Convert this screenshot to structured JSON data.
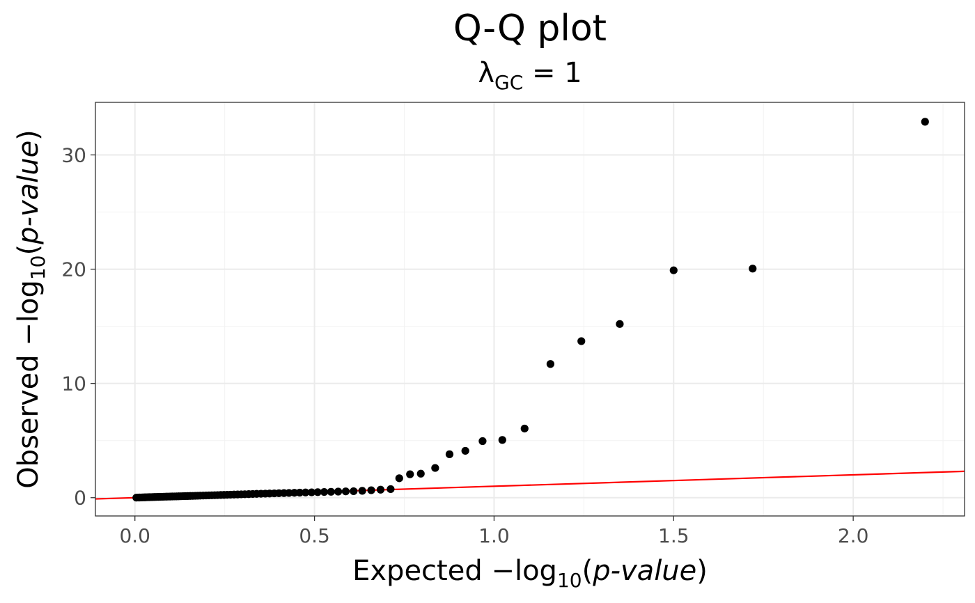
{
  "chart_data": {
    "type": "scatter",
    "title": "Q-Q plot",
    "subtitle": {
      "symbol": "λ",
      "subscript": "GC",
      "rest": " = 1"
    },
    "xlabel": {
      "prefix": "Expected  −log",
      "sub": "10",
      "open": "(",
      "italic": "p-value",
      "close": ")"
    },
    "ylabel": {
      "prefix": "Observed  −log",
      "sub": "10",
      "open": "(",
      "italic": "p-value",
      "close": ")"
    },
    "xlim": [
      -0.11,
      2.31
    ],
    "ylim": [
      -1.6,
      34.6
    ],
    "x_ticks": [
      0.0,
      0.5,
      1.0,
      1.5,
      2.0
    ],
    "x_tick_labels": [
      "0.0",
      "0.5",
      "1.0",
      "1.5",
      "2.0"
    ],
    "y_ticks": [
      0,
      10,
      20,
      30
    ],
    "y_tick_labels": [
      "0",
      "10",
      "20",
      "30"
    ],
    "grid": true,
    "reference_line": {
      "slope": 1,
      "intercept": 0,
      "color": "#ff0000"
    },
    "point_color": "#000000",
    "points": [
      [
        0.004,
        0.003
      ],
      [
        0.009,
        0.01
      ],
      [
        0.013,
        0.015
      ],
      [
        0.018,
        0.02
      ],
      [
        0.022,
        0.025
      ],
      [
        0.027,
        0.03
      ],
      [
        0.031,
        0.035
      ],
      [
        0.036,
        0.04
      ],
      [
        0.04,
        0.045
      ],
      [
        0.045,
        0.05
      ],
      [
        0.05,
        0.055
      ],
      [
        0.055,
        0.06
      ],
      [
        0.06,
        0.065
      ],
      [
        0.065,
        0.07
      ],
      [
        0.07,
        0.075
      ],
      [
        0.076,
        0.08
      ],
      [
        0.081,
        0.085
      ],
      [
        0.087,
        0.09
      ],
      [
        0.092,
        0.095
      ],
      [
        0.098,
        0.1
      ],
      [
        0.104,
        0.105
      ],
      [
        0.11,
        0.11
      ],
      [
        0.116,
        0.115
      ],
      [
        0.122,
        0.12
      ],
      [
        0.128,
        0.126
      ],
      [
        0.134,
        0.132
      ],
      [
        0.14,
        0.138
      ],
      [
        0.147,
        0.144
      ],
      [
        0.154,
        0.15
      ],
      [
        0.161,
        0.157
      ],
      [
        0.168,
        0.164
      ],
      [
        0.175,
        0.171
      ],
      [
        0.182,
        0.178
      ],
      [
        0.19,
        0.186
      ],
      [
        0.198,
        0.194
      ],
      [
        0.206,
        0.202
      ],
      [
        0.214,
        0.21
      ],
      [
        0.222,
        0.218
      ],
      [
        0.23,
        0.226
      ],
      [
        0.239,
        0.235
      ],
      [
        0.248,
        0.244
      ],
      [
        0.257,
        0.253
      ],
      [
        0.266,
        0.262
      ],
      [
        0.276,
        0.272
      ],
      [
        0.286,
        0.282
      ],
      [
        0.296,
        0.292
      ],
      [
        0.306,
        0.302
      ],
      [
        0.317,
        0.312
      ],
      [
        0.328,
        0.322
      ],
      [
        0.339,
        0.333
      ],
      [
        0.351,
        0.344
      ],
      [
        0.363,
        0.355
      ],
      [
        0.375,
        0.366
      ],
      [
        0.388,
        0.378
      ],
      [
        0.401,
        0.39
      ],
      [
        0.415,
        0.402
      ],
      [
        0.429,
        0.415
      ],
      [
        0.444,
        0.428
      ],
      [
        0.459,
        0.441
      ],
      [
        0.475,
        0.455
      ],
      [
        0.492,
        0.469
      ],
      [
        0.509,
        0.484
      ],
      [
        0.527,
        0.499
      ],
      [
        0.546,
        0.515
      ],
      [
        0.566,
        0.532
      ],
      [
        0.587,
        0.55
      ],
      [
        0.609,
        0.568
      ],
      [
        0.633,
        0.6
      ],
      [
        0.658,
        0.65
      ],
      [
        0.684,
        0.7
      ],
      [
        0.712,
        0.75
      ],
      [
        0.736,
        1.7
      ],
      [
        0.766,
        2.05
      ],
      [
        0.796,
        2.1
      ],
      [
        0.836,
        2.6
      ],
      [
        0.876,
        3.8
      ],
      [
        0.92,
        4.1
      ],
      [
        0.968,
        4.95
      ],
      [
        1.023,
        5.05
      ],
      [
        1.085,
        6.05
      ],
      [
        1.157,
        11.7
      ],
      [
        1.243,
        13.7
      ],
      [
        1.35,
        15.2
      ],
      [
        1.5,
        19.9
      ],
      [
        1.72,
        20.05
      ],
      [
        2.2,
        32.9
      ]
    ]
  }
}
